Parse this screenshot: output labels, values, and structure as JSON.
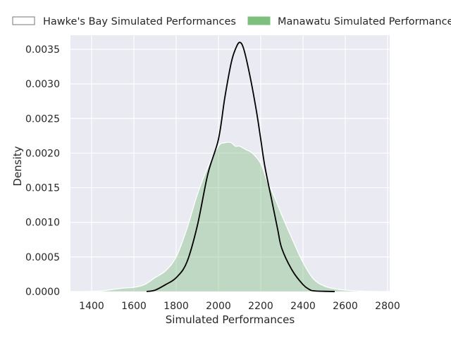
{
  "chart_data": {
    "type": "area",
    "xlabel": "Simulated Performances",
    "ylabel": "Density",
    "xlim": [
      1300,
      2830
    ],
    "ylim": [
      0,
      0.0036
    ],
    "x_ticks": [
      1400,
      1600,
      1800,
      2000,
      2200,
      2400,
      2600,
      2800
    ],
    "x_tick_labels": [
      "1400",
      "1600",
      "1800",
      "2000",
      "2200",
      "2400",
      "2600",
      "2800"
    ],
    "y_ticks": [
      0,
      0.0005,
      0.001,
      0.0015,
      0.002,
      0.0025,
      0.003,
      0.0035
    ],
    "y_tick_labels": [
      "0.0000",
      "0.0005",
      "0.0010",
      "0.0015",
      "0.0020",
      "0.0025",
      "0.0030",
      "0.0035"
    ],
    "grid": true,
    "legend_position": "top, above plot",
    "series": [
      {
        "name": "Hawke's Bay Simulated Performances",
        "style": "line",
        "color": "#000000",
        "x": [
          1660,
          1700,
          1750,
          1800,
          1850,
          1900,
          1950,
          2000,
          2030,
          2060,
          2080,
          2100,
          2120,
          2150,
          2180,
          2200,
          2220,
          2250,
          2280,
          2300,
          2350,
          2400,
          2430,
          2450,
          2500,
          2550
        ],
        "y": [
          0,
          2e-05,
          0.0001,
          0.0002,
          0.00042,
          0.00095,
          0.0017,
          0.0022,
          0.0028,
          0.0033,
          0.0035,
          0.0036,
          0.0035,
          0.0031,
          0.0026,
          0.0022,
          0.0018,
          0.00135,
          0.0009,
          0.00062,
          0.0003,
          0.0001,
          3e-05,
          1e-05,
          3e-06,
          0
        ]
      },
      {
        "name": "Manawatu Simulated Performances",
        "style": "filled",
        "color": "#7dbf7d",
        "x": [
          1370,
          1450,
          1500,
          1550,
          1600,
          1650,
          1700,
          1750,
          1800,
          1850,
          1900,
          1950,
          2000,
          2030,
          2060,
          2080,
          2100,
          2130,
          2160,
          2200,
          2230,
          2260,
          2300,
          2350,
          2400,
          2450,
          2500,
          2550,
          2600,
          2650,
          2700,
          2750
        ],
        "y": [
          0,
          1e-05,
          3e-05,
          5e-05,
          6e-05,
          0.0001,
          0.0002,
          0.0003,
          0.0005,
          0.0009,
          0.0014,
          0.0018,
          0.0021,
          0.00215,
          0.00215,
          0.0021,
          0.0021,
          0.00205,
          0.002,
          0.00185,
          0.0016,
          0.0014,
          0.0011,
          0.00075,
          0.00042,
          0.00018,
          8e-05,
          4e-05,
          2e-05,
          1e-05,
          3e-06,
          0
        ]
      }
    ]
  }
}
